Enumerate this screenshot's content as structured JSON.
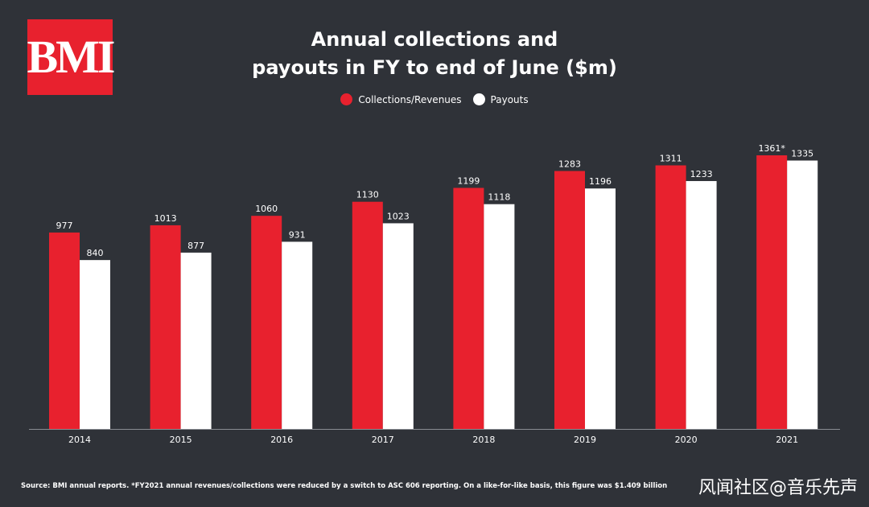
{
  "logo": {
    "text": "BMI"
  },
  "title_line1": "Annual collections and",
  "title_line2": "payouts in FY to end of June ($m)",
  "legend": [
    {
      "label": "Collections/Revenues",
      "color": "#e8212e"
    },
    {
      "label": "Payouts",
      "color": "#ffffff"
    }
  ],
  "chart_data": {
    "type": "bar",
    "title": "Annual collections and payouts in FY to end of June ($m)",
    "categories": [
      "2014",
      "2015",
      "2016",
      "2017",
      "2018",
      "2019",
      "2020",
      "2021"
    ],
    "series": [
      {
        "name": "Collections/Revenues",
        "color": "#e8212e",
        "values": [
          977,
          1013,
          1060,
          1130,
          1199,
          1283,
          1311,
          1361
        ],
        "labels": [
          "977",
          "1013",
          "1060",
          "1130",
          "1199",
          "1283",
          "1311",
          "1361*"
        ]
      },
      {
        "name": "Payouts",
        "color": "#ffffff",
        "values": [
          840,
          877,
          931,
          1023,
          1118,
          1196,
          1233,
          1335
        ],
        "labels": [
          "840",
          "877",
          "931",
          "1023",
          "1118",
          "1196",
          "1233",
          "1335"
        ]
      }
    ],
    "xlabel": "",
    "ylabel": "",
    "ylim": [
      0,
      1361
    ],
    "grid": false,
    "legend_position": "top-center"
  },
  "footnote": "Source: BMI annual reports. *FY2021 annual revenues/collections were reduced by a switch to ASC 606 reporting. On a like-for-like basis, this figure was $1.409 billion",
  "watermark": "风闻社区@音乐先声"
}
